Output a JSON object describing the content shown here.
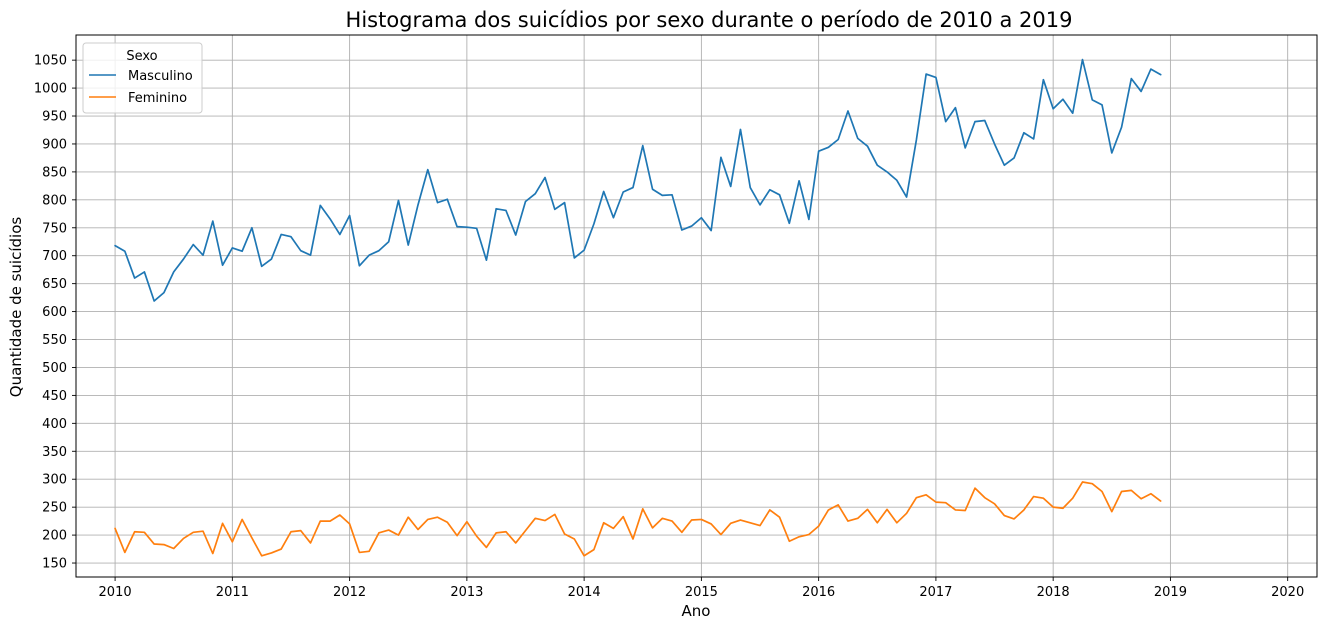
{
  "chart_data": {
    "type": "line",
    "title": "Histograma dos suicídios por sexo durante o período de 2010 a 2019",
    "xlabel": "Ano",
    "ylabel": "Quantidade de suicídios",
    "x_ticks": [
      "2010",
      "2011",
      "2012",
      "2013",
      "2014",
      "2015",
      "2016",
      "2017",
      "2018",
      "2019",
      "2020"
    ],
    "y_ticks": [
      150,
      200,
      250,
      300,
      350,
      400,
      450,
      500,
      550,
      600,
      650,
      700,
      750,
      800,
      850,
      900,
      950,
      1000,
      1050
    ],
    "xlim": [
      "2009-09",
      "2020-04"
    ],
    "ylim": [
      125,
      1095
    ],
    "grid": true,
    "legend": {
      "title": "Sexo",
      "placement": "top-left"
    },
    "x_start": "2010-01",
    "x_step": "month",
    "series": [
      {
        "name": "Masculino",
        "color": "#1f77b4",
        "values": [
          718,
          708,
          660,
          671,
          619,
          634,
          671,
          694,
          720,
          701,
          762,
          683,
          714,
          708,
          750,
          681,
          694,
          738,
          734,
          709,
          701,
          790,
          766,
          738,
          772,
          682,
          701,
          709,
          725,
          799,
          719,
          791,
          854,
          795,
          801,
          752,
          751,
          749,
          692,
          784,
          781,
          737,
          797,
          811,
          840,
          783,
          795,
          696,
          710,
          757,
          815,
          768,
          814,
          822,
          897,
          819,
          808,
          809,
          746,
          753,
          768,
          745,
          876,
          824,
          926,
          822,
          791,
          818,
          809,
          758,
          834,
          765,
          887,
          894,
          908,
          959,
          910,
          896,
          862,
          850,
          835,
          805,
          907,
          1025,
          1019,
          940,
          965,
          893,
          940,
          942,
          900,
          862,
          875,
          920,
          909,
          1015,
          963,
          980,
          955,
          1051,
          979,
          970,
          884,
          930,
          1017,
          994,
          1034,
          1024
        ]
      },
      {
        "name": "Feminino",
        "color": "#ff7f0e",
        "values": [
          212,
          169,
          206,
          205,
          184,
          183,
          176,
          194,
          205,
          207,
          167,
          221,
          188,
          228,
          195,
          163,
          168,
          175,
          206,
          208,
          186,
          225,
          225,
          236,
          220,
          169,
          171,
          204,
          209,
          200,
          232,
          210,
          228,
          232,
          223,
          199,
          224,
          198,
          178,
          204,
          206,
          186,
          208,
          230,
          226,
          237,
          202,
          193,
          163,
          174,
          222,
          212,
          233,
          193,
          247,
          213,
          230,
          225,
          205,
          227,
          228,
          220,
          201,
          221,
          227,
          222,
          217,
          245,
          232,
          189,
          197,
          201,
          216,
          245,
          254,
          225,
          230,
          246,
          222,
          246,
          222,
          239,
          267,
          272,
          259,
          258,
          245,
          244,
          284,
          267,
          256,
          235,
          229,
          245,
          269,
          266,
          250,
          248,
          266,
          295,
          292,
          278,
          242,
          278,
          280,
          265,
          274,
          261
        ]
      }
    ]
  }
}
